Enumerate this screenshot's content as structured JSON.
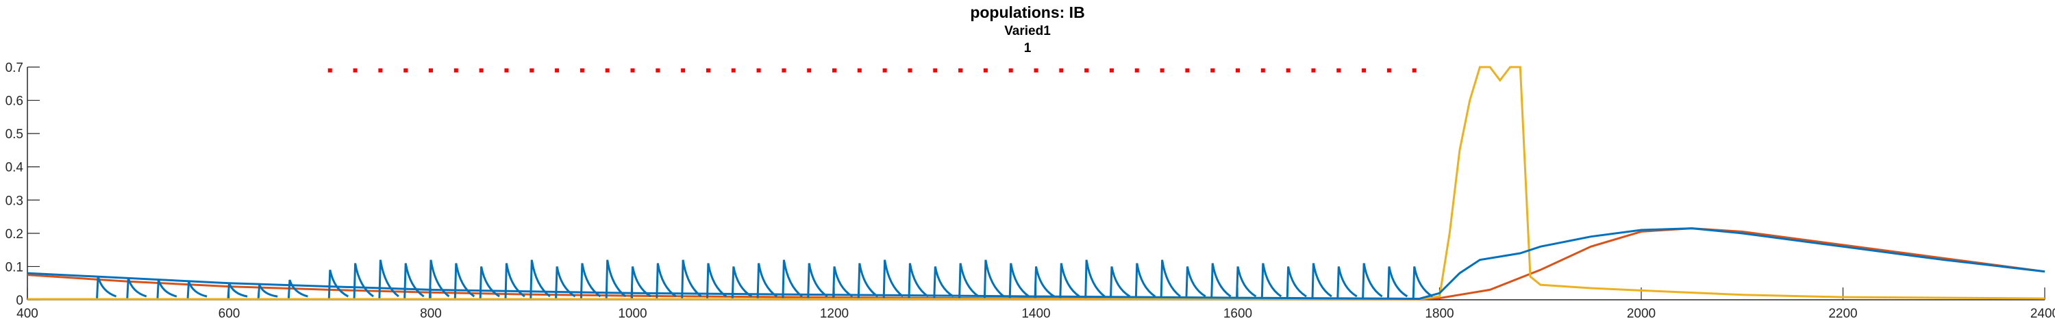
{
  "chart_data": {
    "type": "line",
    "title": "populations: IB",
    "subtitle_lines": [
      "Varied1",
      "1"
    ],
    "xlim": [
      400,
      2400
    ],
    "ylim": [
      0,
      0.7
    ],
    "x_ticks": [
      400,
      600,
      800,
      1000,
      1200,
      1400,
      1600,
      1800,
      2000,
      2200,
      2400
    ],
    "y_ticks": [
      0,
      0.1,
      0.2,
      0.3,
      0.4,
      0.5,
      0.6,
      0.7
    ],
    "x_tick_labels": [
      "400",
      "600",
      "800",
      "1000",
      "1200",
      "1400",
      "1600",
      "1800",
      "2000",
      "2200",
      "2400"
    ],
    "y_tick_labels": [
      "0",
      "0.1",
      "0.2",
      "0.3",
      "0.4",
      "0.5",
      "0.6",
      "0.7"
    ],
    "grid": false,
    "colors": {
      "blue": "#0072BD",
      "red": "#D95319",
      "yellow": "#EDB120",
      "marker": "#FF0000",
      "axis": "#262626"
    },
    "series": [
      {
        "color": "#0072BD",
        "description_points": {
          "x": [
            400,
            600,
            800,
            1000,
            1200,
            1400,
            1600,
            1780,
            1800,
            1820,
            1840,
            1860,
            1880,
            1900,
            1950,
            2000,
            2050,
            2100,
            2200,
            2300,
            2400
          ],
          "y": [
            0.08,
            0.05,
            0.03,
            0.02,
            0.015,
            0.01,
            0.006,
            0.003,
            0.02,
            0.08,
            0.12,
            0.13,
            0.14,
            0.16,
            0.19,
            0.21,
            0.215,
            0.2,
            0.16,
            0.12,
            0.085
          ]
        }
      },
      {
        "color": "#D95319",
        "x": [
          400,
          500,
          600,
          700,
          800,
          900,
          1000,
          1200,
          1400,
          1600,
          1780,
          1800,
          1850,
          1900,
          1950,
          2000,
          2050,
          2100,
          2200,
          2300,
          2400
        ],
        "y": [
          0.075,
          0.055,
          0.04,
          0.03,
          0.022,
          0.016,
          0.012,
          0.007,
          0.004,
          0.002,
          0.001,
          0.005,
          0.03,
          0.09,
          0.16,
          0.205,
          0.215,
          0.205,
          0.165,
          0.125,
          0.085
        ]
      },
      {
        "color": "#EDB120",
        "x": [
          400,
          1780,
          1800,
          1810,
          1820,
          1830,
          1840,
          1850,
          1860,
          1870,
          1880,
          1890,
          1900,
          1950,
          2000,
          2100,
          2200,
          2400
        ],
        "y": [
          0.002,
          0.002,
          0.01,
          0.2,
          0.45,
          0.6,
          0.7,
          0.7,
          0.66,
          0.7,
          0.7,
          0.07,
          0.045,
          0.035,
          0.028,
          0.015,
          0.008,
          0.004
        ]
      }
    ],
    "markers": {
      "color": "#FF0000",
      "y": 0.69,
      "x_start": 700,
      "x_end": 1780,
      "x_step": 25
    },
    "blue_spikes": {
      "x": [
        470,
        500,
        530,
        560,
        600,
        630,
        660,
        700,
        725,
        750,
        775,
        800,
        825,
        850,
        875,
        900,
        925,
        950,
        975,
        1000,
        1025,
        1050,
        1075,
        1100,
        1125,
        1150,
        1175,
        1200,
        1225,
        1250,
        1275,
        1300,
        1325,
        1350,
        1375,
        1400,
        1425,
        1450,
        1475,
        1500,
        1525,
        1550,
        1575,
        1600,
        1625,
        1650,
        1675,
        1700,
        1725,
        1750,
        1775
      ],
      "peak": [
        0.07,
        0.065,
        0.06,
        0.055,
        0.05,
        0.045,
        0.06,
        0.09,
        0.11,
        0.12,
        0.11,
        0.12,
        0.11,
        0.1,
        0.11,
        0.12,
        0.1,
        0.11,
        0.12,
        0.1,
        0.11,
        0.12,
        0.11,
        0.1,
        0.11,
        0.12,
        0.11,
        0.1,
        0.11,
        0.12,
        0.11,
        0.1,
        0.11,
        0.12,
        0.11,
        0.1,
        0.11,
        0.12,
        0.1,
        0.11,
        0.12,
        0.1,
        0.11,
        0.1,
        0.11,
        0.1,
        0.11,
        0.1,
        0.11,
        0.1,
        0.1
      ]
    }
  }
}
